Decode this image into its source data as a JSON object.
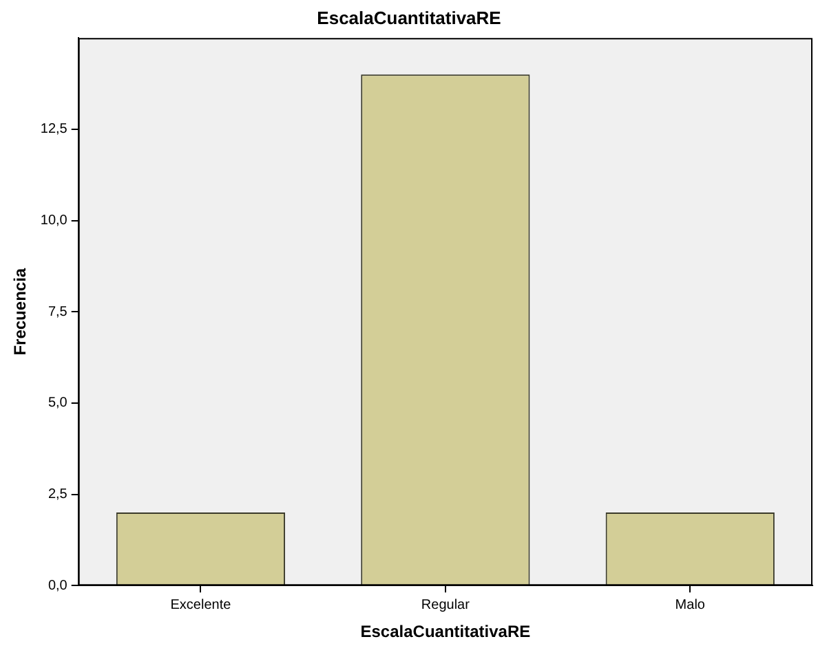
{
  "chart_data": {
    "type": "bar",
    "title": "EscalaCuantitativaRE",
    "xlabel": "EscalaCuantitativaRE",
    "ylabel": "Frecuencia",
    "categories": [
      "Excelente",
      "Regular",
      "Malo"
    ],
    "values": [
      2,
      14,
      2
    ],
    "color": "#d3ce97",
    "ylim": [
      0,
      15
    ],
    "yticks": [
      {
        "value": 0,
        "label": "0,0"
      },
      {
        "value": 2.5,
        "label": "2,5"
      },
      {
        "value": 5,
        "label": "5,0"
      },
      {
        "value": 7.5,
        "label": "7,5"
      },
      {
        "value": 10,
        "label": "10,0"
      },
      {
        "value": 12.5,
        "label": "12,5"
      }
    ],
    "grid": false,
    "legend": false
  }
}
